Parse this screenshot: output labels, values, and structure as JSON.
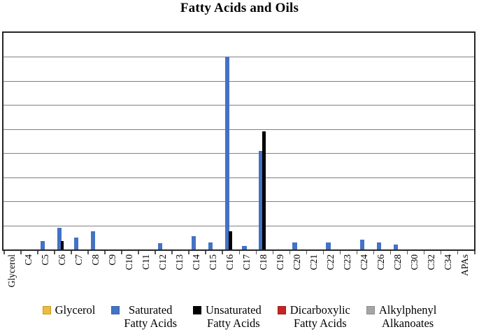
{
  "title": "Fatty Acids and Oils",
  "chart_data": {
    "type": "bar",
    "title": "Fatty Acids and Oils",
    "xlabel": "",
    "ylabel": "",
    "y_axis_tick_labels": "none",
    "ylim": [
      0,
      9
    ],
    "grid": "horizontal, 9 equal divisions, unlabeled",
    "legend_position": "bottom",
    "plot_border_color": "#262626",
    "gridline_color": "#808080",
    "categories": [
      "Glycerol",
      "C4",
      "C5",
      "C6",
      "C7",
      "C8",
      "C9",
      "C10",
      "C11",
      "C12",
      "C13",
      "C14",
      "C15",
      "C16",
      "C17",
      "C18",
      "C19",
      "C20",
      "C21",
      "C22",
      "C23",
      "C24",
      "C26",
      "C28",
      "C30",
      "C32",
      "C34",
      "APAs"
    ],
    "series": [
      {
        "name": "Glycerol",
        "color": "#EDBB3F",
        "border": "#C79A24",
        "values": [
          0,
          0,
          0,
          0,
          0,
          0,
          0,
          0,
          0,
          0,
          0,
          0,
          0,
          0,
          0,
          0,
          0,
          0,
          0,
          0,
          0,
          0,
          0,
          0,
          0,
          0,
          0,
          0
        ]
      },
      {
        "name": "Saturated Fatty Acids",
        "color": "#4472C4",
        "border": "#3A63AB",
        "values": [
          0,
          0,
          0.35,
          0.9,
          0.5,
          0.75,
          0,
          0,
          0,
          0.25,
          0,
          0.55,
          0.3,
          8.0,
          0.15,
          4.1,
          0,
          0.3,
          0,
          0.3,
          0,
          0.4,
          0.3,
          0.2,
          0,
          0,
          0,
          0
        ]
      },
      {
        "name": "Unsaturated Fatty Acids",
        "color": "#000000",
        "border": "#000000",
        "values": [
          0,
          0,
          0,
          0.35,
          0,
          0,
          0,
          0,
          0,
          0,
          0,
          0,
          0,
          0.75,
          0,
          4.9,
          0,
          0,
          0,
          0,
          0,
          0,
          0,
          0,
          0,
          0,
          0,
          0
        ]
      },
      {
        "name": "Dicarboxylic Fatty Acids",
        "color": "#C52622",
        "border": "#9C1B18",
        "values": [
          0,
          0,
          0,
          0,
          0,
          0,
          0,
          0,
          0,
          0,
          0,
          0,
          0,
          0,
          0,
          0,
          0,
          0,
          0,
          0,
          0,
          0,
          0,
          0,
          0,
          0,
          0,
          0
        ]
      },
      {
        "name": "Alkylphenyl Alkanoates",
        "color": "#A5A5A5",
        "border": "#8C8C8C",
        "values": [
          0,
          0,
          0,
          0,
          0,
          0,
          0,
          0,
          0,
          0,
          0,
          0,
          0,
          0,
          0,
          0,
          0,
          0,
          0,
          0,
          0,
          0,
          0,
          0,
          0,
          0,
          0,
          0
        ]
      }
    ],
    "legend": [
      {
        "lines": [
          "Glycerol"
        ],
        "color": "#EDBB3F",
        "border": "#C79A24"
      },
      {
        "lines": [
          "Saturated",
          "Fatty Acids"
        ],
        "color": "#4472C4",
        "border": "#3A63AB"
      },
      {
        "lines": [
          "Unsaturated",
          "Fatty Acids"
        ],
        "color": "#000000",
        "border": "#000000"
      },
      {
        "lines": [
          "Dicarboxylic",
          "Fatty Acids"
        ],
        "color": "#C52622",
        "border": "#9C1B18"
      },
      {
        "lines": [
          "Alkylphenyl",
          "Alkanoates"
        ],
        "color": "#A5A5A5",
        "border": "#8C8C8C"
      }
    ]
  }
}
